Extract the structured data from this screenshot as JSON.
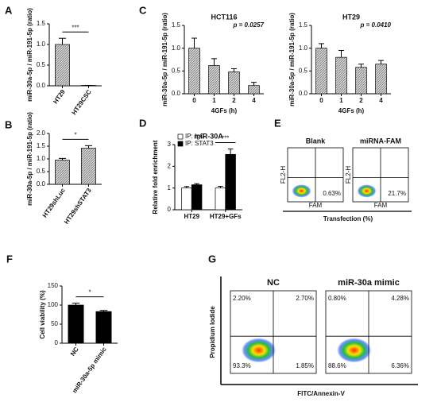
{
  "chart_data": [
    {
      "type": "bar",
      "label": "A",
      "ylabel": "miR-30a-5p / miR-191-5p (ratio)",
      "categories": [
        "HT29",
        "HT29CSC"
      ],
      "values": [
        1.0,
        0.01
      ],
      "errors": [
        0.15,
        0
      ],
      "color": "#b5b5b5",
      "ylim": [
        0,
        1.5
      ],
      "yticks": [
        {
          "value": 0,
          "label": "0.0"
        },
        0.5,
        {
          "value": 1,
          "label": "1.0"
        },
        1.5
      ],
      "annotation": "***"
    },
    {
      "type": "bar",
      "label": "B",
      "ylabel": "miR-30a-5p / miR-191-5p (ratio)",
      "categories": [
        "HT29shLuc",
        "HT29shSTAT3"
      ],
      "values": [
        0.95,
        1.42
      ],
      "errors": [
        0.07,
        0.1
      ],
      "color": "#b5b5b5",
      "ylim": [
        0,
        2
      ],
      "yticks": [
        {
          "value": 0,
          "label": "0.0"
        },
        0.5,
        {
          "value": 1,
          "label": "1.0"
        },
        1.5,
        {
          "value": 2,
          "label": "2.0"
        }
      ],
      "annotation": "*"
    },
    {
      "type": "bar",
      "label": "C",
      "title": "HCT116",
      "ylabel": "miR-30a-5p / miR-191-5p (ratio)",
      "xlabel": "4GFs (h)",
      "categories": [
        "0",
        "1",
        "2",
        "4"
      ],
      "values": [
        1.0,
        0.62,
        0.48,
        0.18
      ],
      "errors": [
        0.22,
        0.15,
        0.07,
        0.07
      ],
      "color": "#b5b5b5",
      "ylim": [
        0,
        1.5
      ],
      "yticks": [
        {
          "value": 0,
          "label": "0.0"
        },
        0.5,
        {
          "value": 1,
          "label": "1.0"
        },
        1.5
      ],
      "annotation": "p = 0.0257"
    },
    {
      "type": "bar",
      "title": "HT29",
      "ylabel": "miR-30a-5p / miR-191-5p (ratio)",
      "xlabel": "4GFs (h)",
      "categories": [
        "0",
        "1",
        "2",
        "4"
      ],
      "values": [
        1.0,
        0.8,
        0.58,
        0.65
      ],
      "errors": [
        0.1,
        0.15,
        0.07,
        0.08
      ],
      "color": "#b5b5b5",
      "ylim": [
        0,
        1.5
      ],
      "yticks": [
        {
          "value": 0,
          "label": "0.0"
        },
        0.5,
        {
          "value": 1,
          "label": "1.0"
        },
        1.5
      ],
      "annotation": "p = 0.0410"
    },
    {
      "type": "bar",
      "label": "D",
      "title": "miR-30A",
      "ylabel": "Relative fold enrichment",
      "categories": [
        "HT29",
        "HT29+GFs"
      ],
      "series": [
        {
          "name": "IP: IgG",
          "color": "#ffffff",
          "values": [
            1.0,
            1.0
          ],
          "errors": [
            0.07,
            0.08
          ]
        },
        {
          "name": "IP: STAT3",
          "color": "#000000",
          "values": [
            1.15,
            2.55
          ],
          "errors": [
            0.05,
            0.25
          ]
        }
      ],
      "ylim": [
        0,
        3
      ],
      "yticks": [
        0,
        1,
        2,
        3
      ],
      "annotation": "***"
    },
    {
      "type": "flow",
      "label": "E",
      "xlabel": "Transfection (%)",
      "panel_xlabel": "FAM",
      "panel_ylabel": "FL2-H",
      "panels": [
        {
          "title": "Blank",
          "values": [
            0.63
          ],
          "value_labels": [
            "0.63%"
          ]
        },
        {
          "title": "miRNA-FAM",
          "values": [
            21.7
          ],
          "value_labels": [
            "21.7%"
          ]
        }
      ]
    },
    {
      "type": "bar",
      "label": "F",
      "ylabel": "Cell viability (%)",
      "categories": [
        "NC",
        "miR-30a-5p mimic"
      ],
      "values": [
        100,
        83
      ],
      "errors": [
        5,
        3
      ],
      "color": "#000000",
      "ylim": [
        0,
        150
      ],
      "yticks": [
        0,
        50,
        100,
        150
      ],
      "annotation": "*"
    },
    {
      "type": "flow",
      "label": "G",
      "xlabel": "FITC/Annexin-V",
      "ylabel": "Propidium Iodide",
      "panels": [
        {
          "title": "NC",
          "values": [
            2.2,
            2.7,
            93.3,
            1.85
          ],
          "value_labels": [
            "2.20%",
            "2.70%",
            "93.3%",
            "1.85%"
          ]
        },
        {
          "title": "miR-30a mimic",
          "values": [
            0.8,
            4.28,
            88.6,
            6.36
          ],
          "value_labels": [
            "0.80%",
            "4.28%",
            "88.6%",
            "6.36%"
          ]
        }
      ]
    }
  ]
}
